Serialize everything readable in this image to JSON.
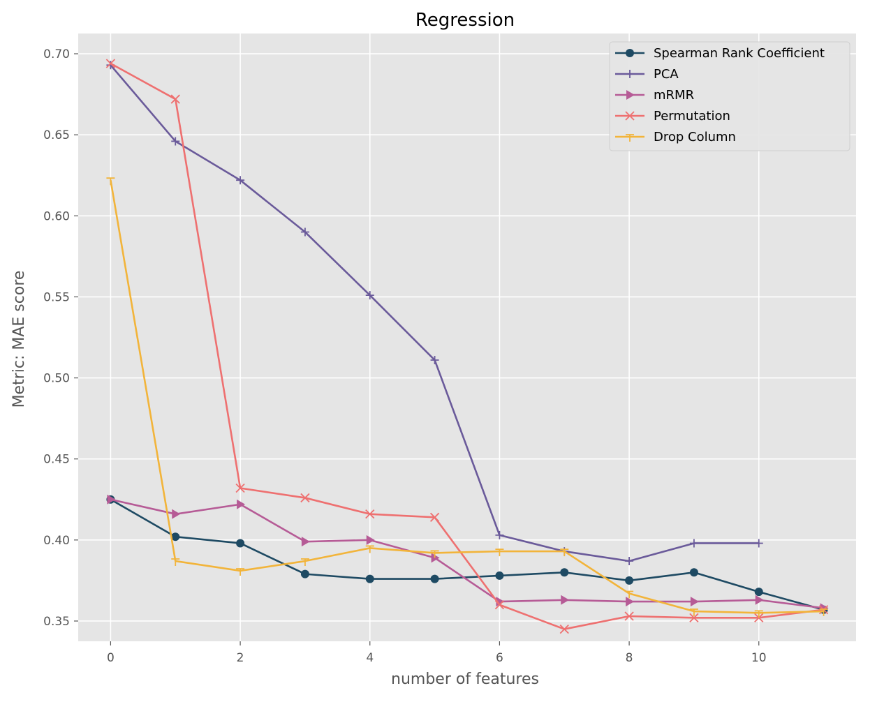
{
  "chart_data": {
    "type": "line",
    "title": "Regression",
    "xlabel": "number of features",
    "ylabel": "Metric: MAE score",
    "xlim": [
      -0.5,
      11.5
    ],
    "ylim": [
      0.3375,
      0.7125
    ],
    "xticks": [
      0,
      2,
      4,
      6,
      8,
      10
    ],
    "xtick_labels": [
      "0",
      "2",
      "4",
      "6",
      "8",
      "10"
    ],
    "yticks": [
      0.35,
      0.4,
      0.45,
      0.5,
      0.55,
      0.6,
      0.65,
      0.7
    ],
    "ytick_labels": [
      "0.35",
      "0.40",
      "0.45",
      "0.50",
      "0.55",
      "0.60",
      "0.65",
      "0.70"
    ],
    "grid": true,
    "legend_position": "top-right",
    "style": "ggplot",
    "series": [
      {
        "name": "Spearman Rank Coefficient",
        "color": "#1e4a63",
        "marker": "circle",
        "x": [
          0,
          1,
          2,
          3,
          4,
          5,
          6,
          7,
          8,
          9,
          10,
          11
        ],
        "values": [
          0.425,
          0.402,
          0.398,
          0.379,
          0.376,
          0.376,
          0.378,
          0.38,
          0.375,
          0.38,
          0.368,
          0.357
        ]
      },
      {
        "name": "PCA",
        "color": "#6a5a9a",
        "marker": "plus",
        "x": [
          0,
          1,
          2,
          3,
          4,
          5,
          6,
          7,
          8,
          9,
          10
        ],
        "values": [
          0.693,
          0.646,
          0.622,
          0.59,
          0.551,
          0.511,
          0.403,
          0.393,
          0.387,
          0.398,
          0.398
        ]
      },
      {
        "name": "mRMR",
        "color": "#b65b96",
        "marker": "triangle-right",
        "x": [
          0,
          1,
          2,
          3,
          4,
          5,
          6,
          7,
          8,
          9,
          10,
          11
        ],
        "values": [
          0.425,
          0.416,
          0.422,
          0.399,
          0.4,
          0.389,
          0.362,
          0.363,
          0.362,
          0.362,
          0.363,
          0.358
        ]
      },
      {
        "name": "Permutation",
        "color": "#ee7070",
        "marker": "x",
        "x": [
          0,
          1,
          2,
          3,
          4,
          5,
          6,
          7,
          8,
          9,
          10,
          11
        ],
        "values": [
          0.694,
          0.672,
          0.432,
          0.426,
          0.416,
          0.414,
          0.36,
          0.345,
          0.353,
          0.352,
          0.352,
          0.357
        ]
      },
      {
        "name": "Drop Column",
        "color": "#f2b43a",
        "marker": "tri",
        "x": [
          0,
          1,
          2,
          3,
          4,
          5,
          6,
          7,
          8,
          9,
          10,
          11
        ],
        "values": [
          0.622,
          0.387,
          0.381,
          0.387,
          0.395,
          0.392,
          0.393,
          0.393,
          0.367,
          0.356,
          0.355,
          0.356
        ]
      }
    ]
  }
}
